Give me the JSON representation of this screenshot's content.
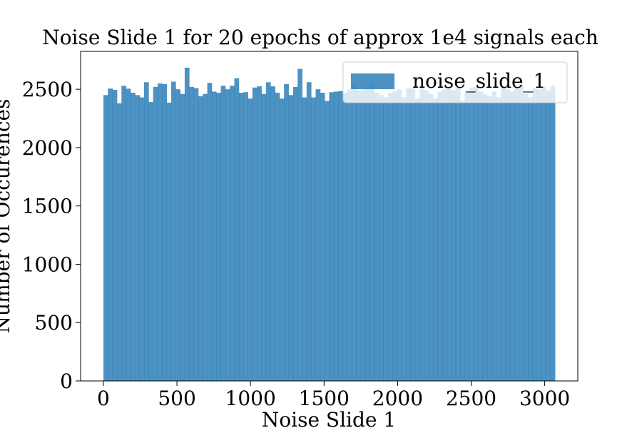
{
  "chart_data": {
    "type": "bar",
    "subtype": "histogram",
    "title": "Noise Slide 1 for 20 epochs of approx 1e4 signals each",
    "xlabel": "Noise Slide 1",
    "ylabel": "Number of Occurences",
    "xlim": [
      -155,
      3225
    ],
    "ylim": [
      0,
      2825
    ],
    "xticks": [
      0,
      500,
      1000,
      1500,
      2000,
      2500,
      3000
    ],
    "yticks": [
      0,
      500,
      1000,
      1500,
      2000,
      2500
    ],
    "legend": {
      "position": "top-right",
      "entries": [
        "noise_slide_1"
      ]
    },
    "series": [
      {
        "name": "noise_slide_1",
        "color": "#1f77b4",
        "opacity": 0.8,
        "bin_start": 0,
        "bin_width": 30.7,
        "values": [
          2450,
          2506,
          2495,
          2380,
          2530,
          2505,
          2470,
          2450,
          2430,
          2560,
          2390,
          2520,
          2550,
          2545,
          2385,
          2565,
          2500,
          2460,
          2685,
          2520,
          2510,
          2440,
          2460,
          2555,
          2480,
          2470,
          2530,
          2500,
          2530,
          2595,
          2470,
          2475,
          2420,
          2515,
          2525,
          2460,
          2560,
          2525,
          2470,
          2420,
          2545,
          2450,
          2520,
          2675,
          2430,
          2560,
          2430,
          2500,
          2470,
          2400,
          2475,
          2480,
          2485,
          2470,
          2500,
          2540,
          2490,
          2500,
          2530,
          2560,
          2470,
          2450,
          2430,
          2470,
          2480,
          2500,
          2430,
          2510,
          2510,
          2420,
          2530,
          2490,
          2460,
          2420,
          2480,
          2500,
          2510,
          2490,
          2510,
          2400,
          2470,
          2510,
          2520,
          2480,
          2460,
          2440,
          2480,
          2430,
          2520,
          2500,
          2480,
          2520,
          2540,
          2460,
          2430,
          2510,
          2500,
          2520,
          2490,
          2530
        ]
      }
    ]
  }
}
